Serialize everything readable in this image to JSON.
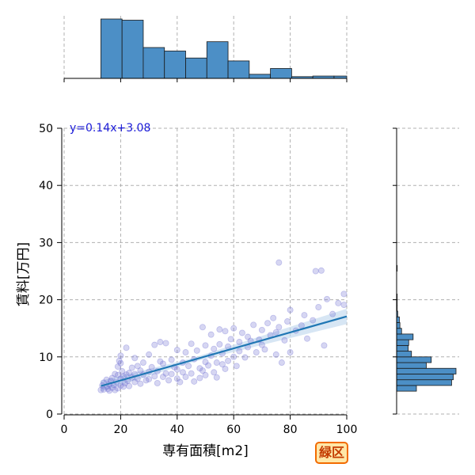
{
  "chart_data": {
    "type": "scatter",
    "xlabel": "専有面積[m2]",
    "ylabel": "賃料[万円]",
    "xlim": [
      0,
      100
    ],
    "ylim": [
      0,
      50
    ],
    "x_ticks": [
      0,
      20,
      40,
      60,
      80,
      100
    ],
    "y_ticks": [
      0,
      10,
      20,
      30,
      40,
      50
    ],
    "grid": "dashed",
    "regression": {
      "label": "y=0.14x+3.08",
      "slope": 0.14,
      "intercept": 3.08,
      "x_range": [
        13,
        100
      ]
    },
    "scatter_points": [
      [
        13,
        4.2
      ],
      [
        13.5,
        5.0
      ],
      [
        14,
        5.5
      ],
      [
        14,
        4.3
      ],
      [
        15,
        4.8
      ],
      [
        15,
        6.0
      ],
      [
        15.5,
        4.4
      ],
      [
        16,
        5.2
      ],
      [
        16,
        4.1
      ],
      [
        16.5,
        5.8
      ],
      [
        17,
        4.6
      ],
      [
        17,
        6.3
      ],
      [
        17.5,
        5.1
      ],
      [
        18,
        4.2
      ],
      [
        18,
        7.0
      ],
      [
        18.5,
        5.6
      ],
      [
        19,
        4.5
      ],
      [
        19,
        6.8
      ],
      [
        19,
        8.3
      ],
      [
        19.5,
        9.3
      ],
      [
        20,
        5.0
      ],
      [
        20,
        6.2
      ],
      [
        20,
        8.9
      ],
      [
        20,
        10.2
      ],
      [
        20.5,
        7.5
      ],
      [
        21,
        4.8
      ],
      [
        21,
        6.6
      ],
      [
        21.5,
        5.4
      ],
      [
        22,
        6.9
      ],
      [
        22,
        11.6
      ],
      [
        22.5,
        5.8
      ],
      [
        23,
        7.2
      ],
      [
        23,
        4.9
      ],
      [
        24,
        6.4
      ],
      [
        24,
        8.1
      ],
      [
        25,
        5.6
      ],
      [
        25,
        7.0
      ],
      [
        25,
        9.8
      ],
      [
        26,
        6.2
      ],
      [
        26,
        8.4
      ],
      [
        27,
        5.3
      ],
      [
        27,
        7.6
      ],
      [
        28,
        6.9
      ],
      [
        28,
        9.0
      ],
      [
        29,
        5.9
      ],
      [
        30,
        7.4
      ],
      [
        30,
        10.4
      ],
      [
        30,
        6.1
      ],
      [
        31,
        8.2
      ],
      [
        32,
        6.6
      ],
      [
        32,
        12.1
      ],
      [
        33,
        7.5
      ],
      [
        33,
        5.4
      ],
      [
        34,
        9.2
      ],
      [
        34,
        12.6
      ],
      [
        35,
        6.5
      ],
      [
        35,
        8.8
      ],
      [
        36,
        7.1
      ],
      [
        36,
        12.4
      ],
      [
        37,
        5.9
      ],
      [
        38,
        9.5
      ],
      [
        38,
        7.0
      ],
      [
        39,
        8.2
      ],
      [
        40,
        6.2
      ],
      [
        40,
        7.8
      ],
      [
        40,
        11.2
      ],
      [
        41,
        5.6
      ],
      [
        42,
        9.0
      ],
      [
        42,
        7.3
      ],
      [
        43,
        10.8
      ],
      [
        43,
        6.5
      ],
      [
        44,
        8.4
      ],
      [
        45,
        12.3
      ],
      [
        45,
        7.1
      ],
      [
        46,
        9.6
      ],
      [
        46,
        5.7
      ],
      [
        47,
        11.1
      ],
      [
        48,
        8.0
      ],
      [
        48,
        6.3
      ],
      [
        49,
        15.2
      ],
      [
        49,
        7.6
      ],
      [
        50,
        12.0
      ],
      [
        50,
        9.1
      ],
      [
        50,
        6.8
      ],
      [
        51,
        8.5
      ],
      [
        52,
        10.2
      ],
      [
        52,
        13.9
      ],
      [
        53,
        7.3
      ],
      [
        53,
        11.4
      ],
      [
        54,
        9.0
      ],
      [
        54,
        6.4
      ],
      [
        55,
        12.2
      ],
      [
        55,
        14.8
      ],
      [
        56,
        8.7
      ],
      [
        56,
        10.6
      ],
      [
        57,
        14.5
      ],
      [
        57,
        7.9
      ],
      [
        58,
        11.8
      ],
      [
        58,
        9.3
      ],
      [
        59,
        13.1
      ],
      [
        60,
        10.0
      ],
      [
        60,
        15.0
      ],
      [
        61,
        8.4
      ],
      [
        62,
        12.6
      ],
      [
        62,
        11.0
      ],
      [
        63,
        14.2
      ],
      [
        64,
        9.9
      ],
      [
        65,
        13.5
      ],
      [
        65,
        11.7
      ],
      [
        66,
        12.8
      ],
      [
        67,
        15.6
      ],
      [
        68,
        10.8
      ],
      [
        69,
        13.0
      ],
      [
        70,
        14.7
      ],
      [
        70,
        12.1
      ],
      [
        71,
        11.3
      ],
      [
        72,
        15.9
      ],
      [
        73,
        13.8
      ],
      [
        74,
        16.8
      ],
      [
        75,
        10.4
      ],
      [
        75,
        14.3
      ],
      [
        76,
        26.5
      ],
      [
        76,
        15.2
      ],
      [
        77,
        9.0
      ],
      [
        78,
        12.9
      ],
      [
        79,
        16.2
      ],
      [
        80,
        18.2
      ],
      [
        80,
        10.8
      ],
      [
        82,
        14.6
      ],
      [
        84,
        15.5
      ],
      [
        85,
        17.3
      ],
      [
        86,
        13.2
      ],
      [
        88,
        16.4
      ],
      [
        89,
        25.0
      ],
      [
        90,
        18.7
      ],
      [
        91,
        25.1
      ],
      [
        92,
        12.0
      ],
      [
        93,
        20.1
      ],
      [
        95,
        17.5
      ],
      [
        97,
        19.4
      ],
      [
        99,
        21.0
      ],
      [
        99,
        19.1
      ]
    ],
    "top_histogram": {
      "bin_edges": [
        13,
        20.5,
        28,
        35.5,
        43,
        50.5,
        58,
        65.5,
        73,
        80.5,
        88,
        95.5,
        103
      ],
      "counts": [
        102,
        100,
        53,
        47,
        35,
        63,
        30,
        7,
        17,
        3,
        4,
        4
      ]
    },
    "right_histogram": {
      "bin_edges": [
        4,
        5,
        6,
        7,
        8,
        9,
        10,
        11,
        12,
        13,
        14,
        15,
        16,
        17,
        18,
        19,
        20,
        21,
        22,
        23,
        24,
        25,
        26,
        27
      ],
      "counts": [
        36,
        100,
        103,
        108,
        54,
        63,
        27,
        21,
        22,
        30,
        9,
        6,
        5,
        2,
        1,
        1,
        1,
        0,
        0,
        0,
        0,
        1,
        0
      ]
    },
    "colors": {
      "scatter": "#6a6ad0",
      "line": "#1f77b4",
      "band": "#c6dbef",
      "hist_fill": "#4c8fc6",
      "equation": "#1a1ad8"
    }
  },
  "badge": {
    "text": "緑区"
  }
}
